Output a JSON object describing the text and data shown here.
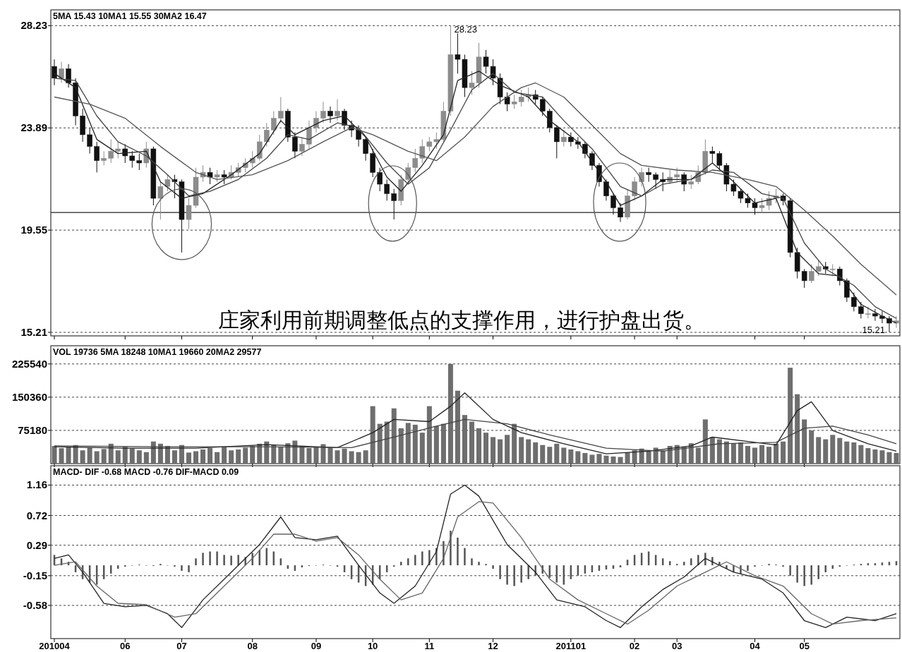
{
  "chart_data": [
    {
      "type": "candlestick",
      "title": "5MA 15.43  10MA1 15.55  30MA2 16.47",
      "categories": [
        "201004",
        null,
        null,
        null,
        null,
        null,
        null,
        null,
        null,
        null,
        "06",
        null,
        null,
        null,
        null,
        null,
        null,
        null,
        "07",
        null,
        null,
        null,
        null,
        null,
        null,
        null,
        null,
        null,
        "08",
        null,
        null,
        null,
        null,
        null,
        null,
        null,
        null,
        "09",
        null,
        null,
        null,
        null,
        null,
        null,
        null,
        "10",
        null,
        null,
        null,
        null,
        null,
        null,
        null,
        "11",
        null,
        null,
        null,
        null,
        null,
        null,
        null,
        null,
        "12",
        null,
        null,
        null,
        null,
        null,
        null,
        null,
        null,
        null,
        null,
        "201101",
        null,
        null,
        null,
        null,
        null,
        null,
        null,
        null,
        "02",
        null,
        null,
        null,
        null,
        null,
        "03",
        null,
        null,
        null,
        null,
        null,
        null,
        null,
        null,
        null,
        null,
        "04",
        null,
        null,
        null,
        null,
        null,
        null,
        "05",
        null,
        null,
        null,
        null,
        null,
        null,
        null,
        null,
        null,
        null,
        null,
        null,
        null
      ],
      "ohlc": [
        [
          26.5,
          26.8,
          25.7,
          26.0
        ],
        [
          26.0,
          26.7,
          25.8,
          26.4
        ],
        [
          26.4,
          26.6,
          25.6,
          25.8
        ],
        [
          25.8,
          26.0,
          24.0,
          24.4
        ],
        [
          24.4,
          24.7,
          23.3,
          23.6
        ],
        [
          23.6,
          23.9,
          22.8,
          23.1
        ],
        [
          23.1,
          23.3,
          22.0,
          22.5
        ],
        [
          22.5,
          22.9,
          22.3,
          22.6
        ],
        [
          22.6,
          23.4,
          22.4,
          22.9
        ],
        [
          22.9,
          23.3,
          22.6,
          23.0
        ],
        [
          23.0,
          23.2,
          22.4,
          22.7
        ],
        [
          22.7,
          22.9,
          22.2,
          22.5
        ],
        [
          22.5,
          22.8,
          22.1,
          22.4
        ],
        [
          22.4,
          23.3,
          22.2,
          23.0
        ],
        [
          23.0,
          23.1,
          20.6,
          20.9
        ],
        [
          20.9,
          21.6,
          20.0,
          21.4
        ],
        [
          21.4,
          21.9,
          21.2,
          21.7
        ],
        [
          21.7,
          21.9,
          20.9,
          21.6
        ],
        [
          21.6,
          21.7,
          18.6,
          20.0
        ],
        [
          20.0,
          20.9,
          19.6,
          20.6
        ],
        [
          20.6,
          22.2,
          20.5,
          21.8
        ],
        [
          21.8,
          22.3,
          21.6,
          22.0
        ],
        [
          22.0,
          22.2,
          21.5,
          21.8
        ],
        [
          21.8,
          22.1,
          21.6,
          21.9
        ],
        [
          21.9,
          22.1,
          21.5,
          21.8
        ],
        [
          21.8,
          22.3,
          21.7,
          22.0
        ],
        [
          22.0,
          22.4,
          21.8,
          22.2
        ],
        [
          22.2,
          22.6,
          22.0,
          22.4
        ],
        [
          22.4,
          22.9,
          22.2,
          22.6
        ],
        [
          22.6,
          23.6,
          22.5,
          23.3
        ],
        [
          23.3,
          24.1,
          23.1,
          23.8
        ],
        [
          23.8,
          24.6,
          23.6,
          24.3
        ],
        [
          24.3,
          25.2,
          24.1,
          24.6
        ],
        [
          24.6,
          24.7,
          23.3,
          23.5
        ],
        [
          23.5,
          23.7,
          22.6,
          22.9
        ],
        [
          22.9,
          23.5,
          22.7,
          23.2
        ],
        [
          23.2,
          24.2,
          23.0,
          23.9
        ],
        [
          23.9,
          24.6,
          23.7,
          24.3
        ],
        [
          24.3,
          25.0,
          24.1,
          24.6
        ],
        [
          24.6,
          24.8,
          24.1,
          24.4
        ],
        [
          24.4,
          25.1,
          24.2,
          24.6
        ],
        [
          24.6,
          24.7,
          23.8,
          24.0
        ],
        [
          24.0,
          24.2,
          23.5,
          23.8
        ],
        [
          23.8,
          24.0,
          23.1,
          23.4
        ],
        [
          23.4,
          23.5,
          22.5,
          22.8
        ],
        [
          22.8,
          23.0,
          21.8,
          22.0
        ],
        [
          22.0,
          22.2,
          21.2,
          21.5
        ],
        [
          21.5,
          21.7,
          20.8,
          21.1
        ],
        [
          21.1,
          21.3,
          20.0,
          20.8
        ],
        [
          20.8,
          21.9,
          20.6,
          21.7
        ],
        [
          21.7,
          22.4,
          21.5,
          22.2
        ],
        [
          22.2,
          23.0,
          22.0,
          22.6
        ],
        [
          22.6,
          23.4,
          22.4,
          23.1
        ],
        [
          23.1,
          23.5,
          22.9,
          23.3
        ],
        [
          23.3,
          23.7,
          23.0,
          23.4
        ],
        [
          23.4,
          25.0,
          23.3,
          24.6
        ],
        [
          24.6,
          28.23,
          24.4,
          27.0
        ],
        [
          27.0,
          27.9,
          26.2,
          26.8
        ],
        [
          26.8,
          27.0,
          25.2,
          25.6
        ],
        [
          25.6,
          26.3,
          25.3,
          25.8
        ],
        [
          25.8,
          27.5,
          25.6,
          26.9
        ],
        [
          26.9,
          27.2,
          26.2,
          26.5
        ],
        [
          26.5,
          26.8,
          25.7,
          26.0
        ],
        [
          26.0,
          26.2,
          24.9,
          25.2
        ],
        [
          25.2,
          25.4,
          24.6,
          24.9
        ],
        [
          24.9,
          25.3,
          24.7,
          25.0
        ],
        [
          25.0,
          25.5,
          24.8,
          25.2
        ],
        [
          25.2,
          25.6,
          25.0,
          25.3
        ],
        [
          25.3,
          25.5,
          24.9,
          25.1
        ],
        [
          25.1,
          25.2,
          24.4,
          24.6
        ],
        [
          24.6,
          24.7,
          23.7,
          23.9
        ],
        [
          23.9,
          24.0,
          22.6,
          23.3
        ],
        [
          23.3,
          23.8,
          23.1,
          23.5
        ],
        [
          23.5,
          23.7,
          23.1,
          23.3
        ],
        [
          23.3,
          23.5,
          23.0,
          23.2
        ],
        [
          23.2,
          23.3,
          22.6,
          22.8
        ],
        [
          22.8,
          22.9,
          22.1,
          22.3
        ],
        [
          22.3,
          22.4,
          21.4,
          21.6
        ],
        [
          21.6,
          21.7,
          20.8,
          21.0
        ],
        [
          21.0,
          21.1,
          20.2,
          20.5
        ],
        [
          20.5,
          20.7,
          19.9,
          20.1
        ],
        [
          20.1,
          21.3,
          20.0,
          21.0
        ],
        [
          21.0,
          21.8,
          20.8,
          21.6
        ],
        [
          21.6,
          22.2,
          21.4,
          22.0
        ],
        [
          22.0,
          22.2,
          21.6,
          21.9
        ],
        [
          21.9,
          22.0,
          21.3,
          21.7
        ],
        [
          21.7,
          22.0,
          21.2,
          21.6
        ],
        [
          21.6,
          22.1,
          21.5,
          21.8
        ],
        [
          21.8,
          22.2,
          21.6,
          21.9
        ],
        [
          21.9,
          22.0,
          21.2,
          21.5
        ],
        [
          21.5,
          21.9,
          21.3,
          21.6
        ],
        [
          21.6,
          22.3,
          21.5,
          22.0
        ],
        [
          22.0,
          23.4,
          21.9,
          22.9
        ],
        [
          22.9,
          23.1,
          22.4,
          22.8
        ],
        [
          22.8,
          22.9,
          22.1,
          22.3
        ],
        [
          22.3,
          22.4,
          21.2,
          21.5
        ],
        [
          21.5,
          21.7,
          21.0,
          21.2
        ],
        [
          21.2,
          21.3,
          20.7,
          20.9
        ],
        [
          20.9,
          21.1,
          20.5,
          20.7
        ],
        [
          20.7,
          20.9,
          20.2,
          20.5
        ],
        [
          20.5,
          20.9,
          20.3,
          20.6
        ],
        [
          20.6,
          21.2,
          20.4,
          20.9
        ],
        [
          20.9,
          21.3,
          20.7,
          21.0
        ],
        [
          21.0,
          21.1,
          20.6,
          20.8
        ],
        [
          20.8,
          20.9,
          18.4,
          18.6
        ],
        [
          18.6,
          18.8,
          17.5,
          17.8
        ],
        [
          17.8,
          17.9,
          17.1,
          17.4
        ],
        [
          17.4,
          18.1,
          17.3,
          17.8
        ],
        [
          17.8,
          18.3,
          17.6,
          18.0
        ],
        [
          18.0,
          18.2,
          17.7,
          17.9
        ],
        [
          17.9,
          18.1,
          17.6,
          17.9
        ],
        [
          17.9,
          18.0,
          17.2,
          17.4
        ],
        [
          17.4,
          17.5,
          16.5,
          16.7
        ],
        [
          16.7,
          16.9,
          16.1,
          16.3
        ],
        [
          16.3,
          16.5,
          15.8,
          16.0
        ],
        [
          16.0,
          16.3,
          15.8,
          16.0
        ],
        [
          16.0,
          16.2,
          15.7,
          15.9
        ],
        [
          15.9,
          16.1,
          15.6,
          15.8
        ],
        [
          15.8,
          15.9,
          15.21,
          15.6
        ],
        [
          15.6,
          15.9,
          15.4,
          15.7
        ]
      ],
      "colors": [
        "#111111",
        "#8c8c8c",
        "#111111",
        "#111111",
        "#111111",
        "#111111",
        "#111111",
        "#8c8c8c",
        "#8c8c8c",
        "#8c8c8c",
        "#111111",
        "#111111",
        "#111111",
        "#8c8c8c",
        "#111111",
        "#8c8c8c",
        "#8c8c8c",
        "#111111",
        "#111111",
        "#8c8c8c",
        "#8c8c8c",
        "#8c8c8c",
        "#111111",
        "#8c8c8c",
        "#111111",
        "#8c8c8c",
        "#8c8c8c",
        "#8c8c8c",
        "#8c8c8c",
        "#8c8c8c",
        "#8c8c8c",
        "#8c8c8c",
        "#8c8c8c",
        "#111111",
        "#111111",
        "#8c8c8c",
        "#8c8c8c",
        "#8c8c8c",
        "#8c8c8c",
        "#111111",
        "#8c8c8c",
        "#111111",
        "#111111",
        "#111111",
        "#111111",
        "#111111",
        "#111111",
        "#111111",
        "#111111",
        "#8c8c8c",
        "#8c8c8c",
        "#8c8c8c",
        "#8c8c8c",
        "#8c8c8c",
        "#8c8c8c",
        "#8c8c8c",
        "#8c8c8c",
        "#111111",
        "#111111",
        "#8c8c8c",
        "#8c8c8c",
        "#111111",
        "#111111",
        "#111111",
        "#111111",
        "#8c8c8c",
        "#8c8c8c",
        "#8c8c8c",
        "#111111",
        "#111111",
        "#111111",
        "#111111",
        "#8c8c8c",
        "#111111",
        "#111111",
        "#111111",
        "#111111",
        "#111111",
        "#111111",
        "#111111",
        "#111111",
        "#8c8c8c",
        "#8c8c8c",
        "#8c8c8c",
        "#111111",
        "#111111",
        "#111111",
        "#8c8c8c",
        "#8c8c8c",
        "#111111",
        "#8c8c8c",
        "#8c8c8c",
        "#8c8c8c",
        "#111111",
        "#111111",
        "#111111",
        "#111111",
        "#111111",
        "#111111",
        "#111111",
        "#8c8c8c",
        "#8c8c8c",
        "#8c8c8c",
        "#111111",
        "#111111",
        "#111111",
        "#111111",
        "#8c8c8c",
        "#8c8c8c",
        "#111111",
        "#8c8c8c",
        "#111111",
        "#111111",
        "#111111",
        "#111111",
        "#8c8c8c",
        "#111111",
        "#111111",
        "#111111",
        "#8c8c8c"
      ],
      "series": [
        {
          "type": "line",
          "color": "#222222",
          "values": [
            26.2,
            null,
            null,
            25.6,
            null,
            null,
            23.4,
            null,
            null,
            22.8,
            null,
            null,
            null,
            22.9,
            null,
            21.6,
            null,
            null,
            20.9,
            null,
            null,
            21.1,
            null,
            null,
            null,
            21.9,
            null,
            null,
            null,
            22.8,
            null,
            null,
            24.2,
            null,
            23.6,
            null,
            null,
            null,
            24.2,
            null,
            null,
            24.4,
            null,
            null,
            23.5,
            null,
            null,
            21.8,
            null,
            21.2,
            null,
            null,
            22.3,
            null,
            null,
            23.6,
            null,
            25.9,
            null,
            null,
            26.3,
            null,
            null,
            25.7,
            null,
            null,
            null,
            25.2,
            null,
            null,
            24.2,
            null,
            null,
            null,
            23.3,
            null,
            null,
            null,
            21.6,
            null,
            20.6,
            null,
            null,
            21.0,
            null,
            null,
            21.7,
            null,
            null,
            null,
            21.7,
            null,
            null,
            22.4,
            null,
            null,
            21.6,
            null,
            null,
            20.7,
            null,
            null,
            20.9,
            null,
            null,
            18.6,
            null,
            null,
            17.7,
            null,
            null,
            17.6,
            null,
            null,
            16.4,
            null,
            null,
            15.9,
            null,
            15.6
          ]
        },
        {
          "type": "line",
          "color": "#444444",
          "values": [
            26.0,
            null,
            null,
            25.9,
            null,
            null,
            24.4,
            null,
            null,
            23.3,
            null,
            null,
            null,
            22.7,
            null,
            null,
            21.9,
            null,
            null,
            21.0,
            null,
            null,
            21.2,
            null,
            null,
            null,
            21.7,
            null,
            null,
            null,
            22.6,
            null,
            null,
            23.6,
            null,
            null,
            23.4,
            null,
            null,
            null,
            24.1,
            null,
            null,
            23.9,
            null,
            null,
            null,
            22.4,
            null,
            null,
            21.5,
            null,
            null,
            22.2,
            null,
            null,
            23.8,
            null,
            null,
            25.5,
            null,
            null,
            26.2,
            null,
            null,
            25.4,
            null,
            null,
            null,
            25.2,
            null,
            null,
            24.2,
            null,
            null,
            null,
            23.0,
            null,
            null,
            null,
            21.4,
            null,
            null,
            21.0,
            null,
            null,
            21.5,
            null,
            null,
            null,
            21.7,
            null,
            null,
            22.1,
            null,
            null,
            22.0,
            null,
            null,
            null,
            21.1,
            null,
            null,
            20.9,
            null,
            null,
            19.0,
            null,
            null,
            17.9,
            null,
            null,
            null,
            17.2,
            null,
            null,
            16.3,
            null,
            null,
            15.8
          ]
        },
        {
          "type": "line",
          "color": "#555555",
          "values": [
            25.2,
            null,
            null,
            null,
            null,
            24.9,
            null,
            null,
            null,
            null,
            24.3,
            null,
            null,
            null,
            null,
            23.1,
            null,
            null,
            null,
            null,
            22.0,
            null,
            null,
            21.7,
            null,
            null,
            null,
            null,
            21.9,
            null,
            null,
            null,
            null,
            22.5,
            null,
            null,
            null,
            null,
            23.3,
            null,
            null,
            null,
            23.9,
            null,
            null,
            23.6,
            null,
            null,
            null,
            null,
            22.9,
            null,
            null,
            null,
            22.5,
            null,
            null,
            null,
            23.5,
            null,
            null,
            null,
            24.8,
            null,
            null,
            null,
            25.6,
            null,
            25.8,
            null,
            null,
            null,
            25.2,
            null,
            null,
            null,
            24.0,
            null,
            null,
            null,
            22.8,
            null,
            null,
            22.3,
            null,
            null,
            null,
            null,
            22.1,
            null,
            null,
            null,
            null,
            22.0,
            null,
            null,
            null,
            null,
            21.7,
            null,
            null,
            null,
            21.4,
            null,
            null,
            null,
            20.4,
            null,
            null,
            null,
            19.3,
            null,
            null,
            null,
            18.1,
            null,
            null,
            null,
            null,
            16.8
          ]
        }
      ],
      "ylim": [
        15.06,
        28.9
      ],
      "yticks": [
        {
          "value": 15.21,
          "label": "15.21"
        },
        {
          "value": 19.55,
          "label": "19.55"
        },
        {
          "value": 23.89,
          "label": "23.89"
        },
        {
          "value": 28.23,
          "label": "28.23"
        }
      ],
      "grid": "y",
      "tick_labels": "y",
      "ref_lines": [
        {
          "axis": "y",
          "value": 20.3,
          "color": "#222222"
        }
      ],
      "annotations": [
        "庄家利用前期调整低点的支撑作用，进行护盘出货。",
        "28.23",
        "15.21"
      ]
    },
    {
      "type": "bar",
      "title": "VOL 19736  5MA 18248  10MA1 19660  20MA2 29577",
      "categories": [
        "201004",
        null,
        null,
        null,
        null,
        null,
        null,
        null,
        null,
        null,
        "06",
        null,
        null,
        null,
        null,
        null,
        null,
        null,
        "07",
        null,
        null,
        null,
        null,
        null,
        null,
        null,
        null,
        null,
        "08",
        null,
        null,
        null,
        null,
        null,
        null,
        null,
        null,
        "09",
        null,
        null,
        null,
        null,
        null,
        null,
        null,
        "10",
        null,
        null,
        null,
        null,
        null,
        null,
        null,
        "11",
        null,
        null,
        null,
        null,
        null,
        null,
        null,
        null,
        "12",
        null,
        null,
        null,
        null,
        null,
        null,
        null,
        null,
        null,
        null,
        "201101",
        null,
        null,
        null,
        null,
        null,
        null,
        null,
        null,
        "02",
        null,
        null,
        null,
        null,
        null,
        "03",
        null,
        null,
        null,
        null,
        null,
        null,
        null,
        null,
        null,
        null,
        "04",
        null,
        null,
        null,
        null,
        null,
        null,
        "05",
        null,
        null,
        null,
        null,
        null,
        null,
        null,
        null,
        null,
        null,
        null,
        null,
        null
      ],
      "values": [
        40000,
        35000,
        38000,
        42000,
        30000,
        36000,
        28000,
        33000,
        45000,
        30000,
        38000,
        34000,
        30000,
        26000,
        50000,
        45000,
        40000,
        30000,
        42000,
        25000,
        28000,
        32000,
        35000,
        26000,
        38000,
        30000,
        32000,
        36000,
        40000,
        45000,
        50000,
        42000,
        38000,
        46000,
        52000,
        40000,
        35000,
        38000,
        44000,
        36000,
        30000,
        34000,
        28000,
        26000,
        30000,
        130000,
        90000,
        95000,
        125000,
        80000,
        92000,
        88000,
        70000,
        130000,
        85000,
        90000,
        225540,
        165000,
        110000,
        95000,
        80000,
        70000,
        60000,
        55000,
        65000,
        90000,
        60000,
        55000,
        48000,
        42000,
        38000,
        45000,
        36000,
        32000,
        28000,
        24000,
        20000,
        22000,
        18000,
        16000,
        15000,
        25000,
        30000,
        34000,
        28000,
        36000,
        30000,
        40000,
        42000,
        38000,
        46000,
        36000,
        100000,
        60000,
        55000,
        50000,
        45000,
        48000,
        40000,
        36000,
        42000,
        38000,
        45000,
        50000,
        217000,
        157000,
        100000,
        75000,
        60000,
        55000,
        65000,
        58000,
        50000,
        48000,
        42000,
        35000,
        32000,
        30000,
        26000,
        24000
      ],
      "color": "#6e6e6e",
      "series": [
        {
          "type": "line",
          "color": "#222222",
          "values": [
            38000,
            null,
            null,
            null,
            null,
            null,
            null,
            null,
            null,
            null,
            35000,
            null,
            null,
            null,
            null,
            null,
            null,
            null,
            null,
            null,
            35000,
            null,
            null,
            null,
            null,
            null,
            null,
            null,
            null,
            null,
            43000,
            null,
            null,
            null,
            null,
            null,
            null,
            null,
            null,
            null,
            36000,
            null,
            null,
            null,
            null,
            70000,
            null,
            null,
            100000,
            null,
            null,
            null,
            null,
            95000,
            null,
            null,
            130000,
            null,
            160000,
            null,
            null,
            null,
            100000,
            null,
            null,
            null,
            70000,
            null,
            null,
            null,
            null,
            null,
            45000,
            null,
            null,
            null,
            null,
            null,
            22000,
            null,
            null,
            null,
            null,
            null,
            28000,
            null,
            null,
            null,
            null,
            null,
            40000,
            null,
            null,
            60000,
            null,
            null,
            null,
            null,
            50000,
            null,
            null,
            null,
            42000,
            null,
            null,
            120000,
            null,
            140000,
            null,
            null,
            75000,
            null,
            null,
            null,
            null,
            45000,
            null,
            null,
            null,
            28000
          ]
        },
        {
          "type": "line",
          "color": "#444444",
          "values": [
            40000,
            null,
            null,
            null,
            null,
            null,
            null,
            null,
            null,
            null,
            null,
            null,
            null,
            null,
            null,
            38000,
            null,
            null,
            null,
            null,
            null,
            null,
            null,
            null,
            null,
            null,
            null,
            null,
            null,
            null,
            38000,
            null,
            null,
            null,
            null,
            null,
            null,
            null,
            null,
            null,
            null,
            null,
            36000,
            null,
            null,
            null,
            null,
            null,
            60000,
            null,
            null,
            null,
            null,
            null,
            85000,
            null,
            null,
            null,
            100000,
            null,
            null,
            null,
            null,
            null,
            90000,
            null,
            null,
            null,
            null,
            null,
            65000,
            null,
            null,
            null,
            null,
            null,
            null,
            null,
            35000,
            null,
            null,
            null,
            null,
            null,
            null,
            null,
            28000,
            null,
            null,
            null,
            null,
            null,
            null,
            null,
            45000,
            null,
            null,
            null,
            null,
            null,
            null,
            null,
            48000,
            null,
            null,
            null,
            80000,
            null,
            null,
            null,
            85000,
            null,
            null,
            null,
            null,
            65000,
            null,
            null,
            null,
            45000
          ]
        }
      ],
      "ylim": [
        0,
        266700
      ],
      "yticks": [
        75180,
        150360,
        225540
      ],
      "grid": "y",
      "tick_labels": "y"
    },
    {
      "type": "bar",
      "title": "MACD- DIF -0.68  MACD -0.76  DIF-MACD 0.09",
      "categories": [
        "201004",
        null,
        null,
        null,
        null,
        null,
        null,
        null,
        null,
        null,
        "06",
        null,
        null,
        null,
        null,
        null,
        null,
        null,
        "07",
        null,
        null,
        null,
        null,
        null,
        null,
        null,
        null,
        null,
        "08",
        null,
        null,
        null,
        null,
        null,
        null,
        null,
        null,
        "09",
        null,
        null,
        null,
        null,
        null,
        null,
        null,
        "10",
        null,
        null,
        null,
        null,
        null,
        null,
        null,
        "11",
        null,
        null,
        null,
        null,
        null,
        null,
        null,
        null,
        "12",
        null,
        null,
        null,
        null,
        null,
        null,
        null,
        null,
        null,
        null,
        "201101",
        null,
        null,
        null,
        null,
        null,
        null,
        null,
        null,
        "02",
        null,
        null,
        null,
        null,
        null,
        "03",
        null,
        null,
        null,
        null,
        null,
        null,
        null,
        null,
        null,
        null,
        "04",
        null,
        null,
        null,
        null,
        null,
        null,
        "05",
        null,
        null,
        null,
        null,
        null,
        null,
        null,
        null,
        null,
        null,
        null,
        null,
        null
      ],
      "values": [
        0.15,
        0.1,
        0.05,
        -0.1,
        -0.2,
        -0.25,
        -0.28,
        -0.2,
        -0.12,
        -0.05,
        -0.02,
        0.0,
        0.01,
        0.0,
        -0.01,
        0.02,
        0.0,
        -0.02,
        -0.08,
        -0.1,
        0.1,
        0.18,
        0.2,
        0.2,
        0.15,
        0.14,
        0.15,
        0.12,
        0.18,
        0.22,
        0.25,
        0.2,
        0.1,
        -0.05,
        -0.08,
        -0.03,
        -0.01,
        0.0,
        0.01,
        0.0,
        -0.02,
        -0.1,
        -0.2,
        -0.25,
        -0.3,
        -0.28,
        -0.2,
        -0.1,
        -0.02,
        0.05,
        0.1,
        0.15,
        0.2,
        0.22,
        0.25,
        0.35,
        0.5,
        0.4,
        0.25,
        0.1,
        0.05,
        0.02,
        -0.05,
        -0.2,
        -0.28,
        -0.3,
        -0.25,
        -0.2,
        -0.15,
        -0.12,
        -0.18,
        -0.25,
        -0.28,
        -0.2,
        -0.15,
        -0.12,
        -0.1,
        -0.08,
        -0.06,
        -0.05,
        -0.03,
        0.08,
        0.15,
        0.18,
        0.2,
        0.15,
        0.1,
        0.06,
        0.02,
        0.05,
        0.1,
        0.15,
        0.18,
        0.12,
        0.05,
        -0.05,
        -0.1,
        -0.12,
        -0.08,
        -0.02,
        0.0,
        0.02,
        0.01,
        -0.02,
        -0.15,
        -0.25,
        -0.3,
        -0.28,
        -0.2,
        -0.1,
        -0.05,
        -0.02,
        0.0,
        0.01,
        0.02,
        0.03,
        0.03,
        0.04,
        0.05,
        0.06
      ],
      "color": "#555555",
      "series": [
        {
          "type": "line",
          "color": "#222222",
          "values": [
            0.1,
            null,
            0.15,
            null,
            -0.1,
            null,
            null,
            -0.55,
            null,
            null,
            -0.6,
            null,
            null,
            -0.58,
            null,
            null,
            -0.7,
            null,
            -0.9,
            null,
            null,
            -0.5,
            null,
            null,
            null,
            -0.1,
            null,
            null,
            null,
            0.3,
            null,
            null,
            0.7,
            null,
            0.4,
            null,
            null,
            0.37,
            null,
            null,
            0.42,
            null,
            null,
            0.0,
            null,
            null,
            -0.4,
            null,
            -0.55,
            null,
            null,
            -0.3,
            null,
            null,
            0.2,
            null,
            1.03,
            null,
            1.16,
            null,
            1.0,
            null,
            null,
            null,
            0.3,
            null,
            null,
            null,
            -0.1,
            null,
            null,
            -0.5,
            null,
            null,
            null,
            -0.6,
            null,
            null,
            -0.8,
            null,
            -0.9,
            null,
            null,
            -0.6,
            null,
            null,
            -0.35,
            null,
            null,
            -0.17,
            null,
            null,
            0.1,
            null,
            null,
            null,
            -0.1,
            null,
            null,
            null,
            -0.2,
            null,
            null,
            -0.4,
            null,
            null,
            -0.8,
            null,
            null,
            -0.9,
            null,
            null,
            -0.75,
            null,
            null,
            null,
            -0.8,
            null,
            null,
            -0.7
          ]
        },
        {
          "type": "line",
          "color": "#666666",
          "values": [
            0.0,
            null,
            null,
            0.05,
            null,
            null,
            -0.3,
            null,
            null,
            -0.55,
            null,
            null,
            null,
            -0.57,
            null,
            null,
            null,
            -0.75,
            null,
            null,
            -0.7,
            null,
            null,
            null,
            -0.3,
            null,
            null,
            null,
            0.1,
            null,
            null,
            0.45,
            null,
            null,
            0.45,
            null,
            null,
            0.35,
            null,
            null,
            0.4,
            null,
            null,
            0.15,
            null,
            null,
            -0.2,
            null,
            null,
            -0.5,
            null,
            null,
            -0.4,
            null,
            null,
            0.1,
            null,
            0.7,
            null,
            null,
            0.92,
            null,
            0.9,
            null,
            null,
            null,
            0.4,
            null,
            null,
            null,
            -0.2,
            null,
            null,
            null,
            -0.5,
            null,
            null,
            null,
            -0.7,
            null,
            null,
            -0.85,
            null,
            null,
            -0.65,
            null,
            null,
            null,
            -0.3,
            null,
            null,
            -0.15,
            null,
            null,
            null,
            0.05,
            null,
            null,
            null,
            -0.15,
            null,
            null,
            null,
            -0.3,
            null,
            null,
            null,
            -0.7,
            null,
            null,
            -0.85,
            null,
            null,
            null,
            -0.8,
            null,
            null,
            null,
            null,
            -0.76
          ]
        }
      ],
      "ylim": [
        -1.06,
        1.44
      ],
      "yticks": [
        {
          "value": -0.58,
          "label": "-0.58"
        },
        {
          "value": -0.15,
          "label": "-0.15"
        },
        0.29,
        0.72,
        1.16
      ],
      "grid": "y"
    }
  ]
}
